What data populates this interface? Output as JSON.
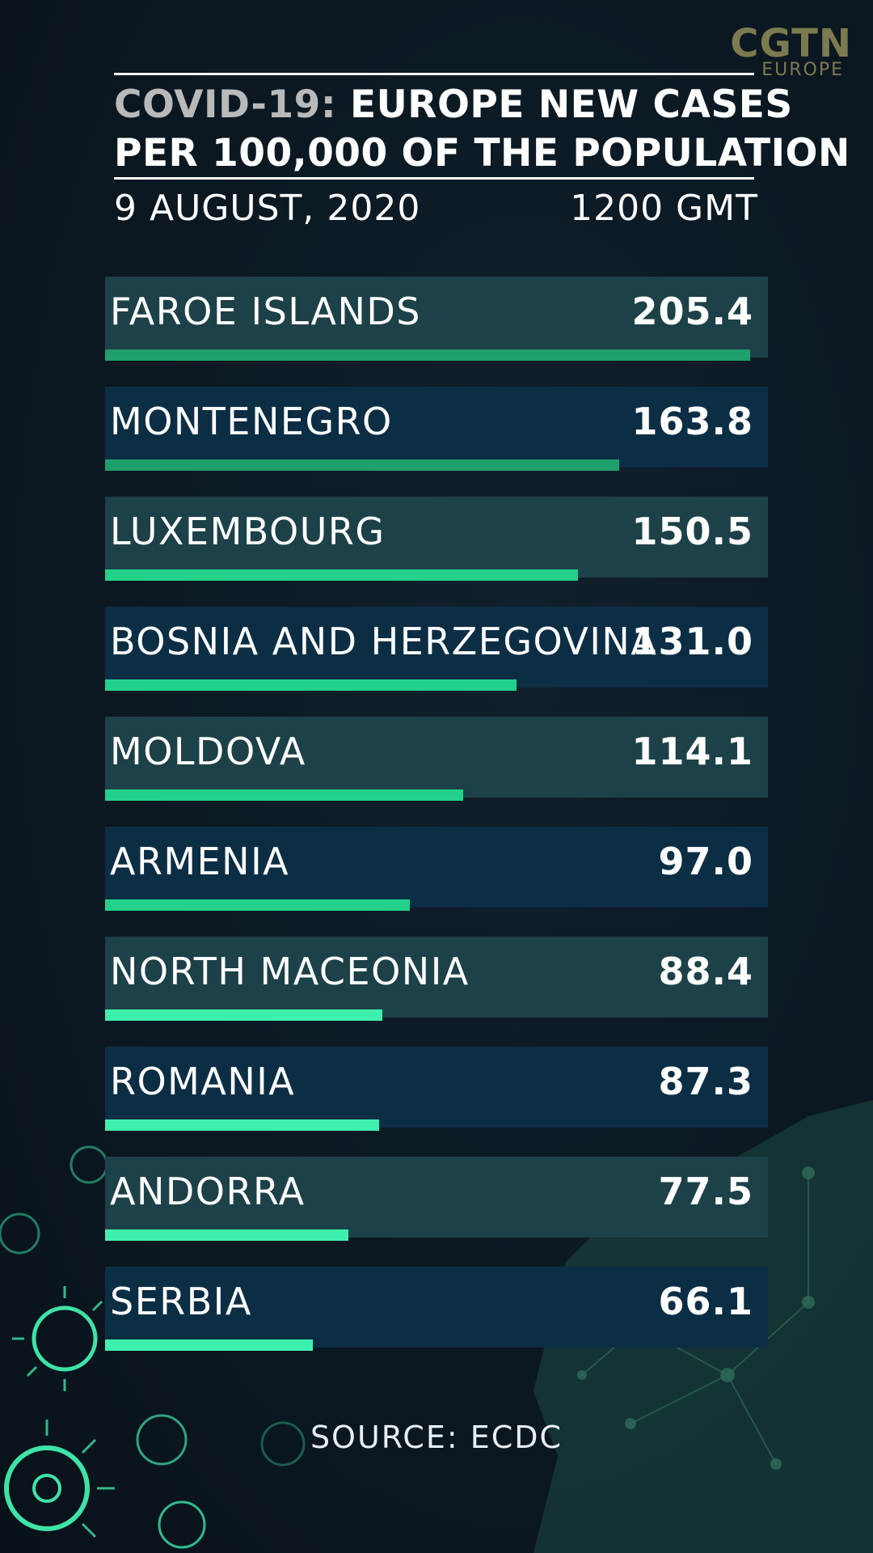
{
  "logo": {
    "main": "CGTN",
    "sub": "EUROPE"
  },
  "header": {
    "title_prefix": "COVID-19:",
    "title_line1": "EUROPE NEW CASES",
    "title_line2": "PER 100,000 OF THE POPULATION",
    "date": "9 AUGUST, 2020",
    "time": "1200 GMT"
  },
  "footer": {
    "source": "SOURCE: ECDC"
  },
  "colors": {
    "bar_dark": "#1fa06a",
    "bar_mid": "#22d18a",
    "bar_light": "#3ef0ae",
    "row_odd": "#1d4148",
    "row_even": "#0c2e45"
  },
  "chart_data": {
    "type": "bar",
    "orientation": "horizontal",
    "categories": [
      "FAROE ISLANDS",
      "MONTENEGRO",
      "LUXEMBOURG",
      "BOSNIA AND HERZEGOVINA",
      "MOLDOVA",
      "ARMENIA",
      "NORTH MACEONIA",
      "ROMANIA",
      "ANDORRA",
      "SERBIA"
    ],
    "values": [
      205.4,
      163.8,
      150.5,
      131.0,
      114.1,
      97.0,
      88.4,
      87.3,
      77.5,
      66.1
    ],
    "value_labels": [
      "205.4",
      "163.8",
      "150.5",
      "131.0",
      "114.1",
      "97.0",
      "88.4",
      "87.3",
      "77.5",
      "66.1"
    ],
    "xlim": [
      0,
      205.4
    ]
  }
}
